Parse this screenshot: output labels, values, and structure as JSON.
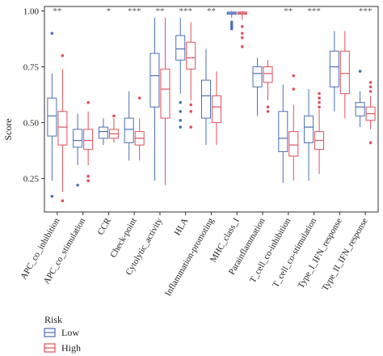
{
  "chart_data": {
    "type": "box",
    "ylabel": "Score",
    "xlabel": "",
    "ylim": [
      0.1,
      1.02
    ],
    "yticks": [
      "0.25",
      "0.50",
      "0.75",
      "1.00"
    ],
    "categories": [
      "APC_co_inhibition",
      "APC_co_stimulation",
      "CCR",
      "Check-point",
      "Cytolytic_activity",
      "HLA",
      "Inflammation-promoting",
      "MHC_class_I",
      "Parainflammation",
      "T_cell_co-inhibition",
      "T_cell_co-stimulation",
      "Type_I_IFN_response",
      "Type_II_IFN_response"
    ],
    "significance": [
      "**",
      "",
      "*",
      "***",
      "**",
      "***",
      "**",
      "",
      "",
      "**",
      "***",
      "",
      "***"
    ],
    "legend": {
      "title": "Risk",
      "position": "bottom-left"
    },
    "series": [
      {
        "name": "Low",
        "color": "#4a6fb5",
        "boxes": [
          {
            "min": 0.24,
            "q1": 0.44,
            "median": 0.53,
            "q3": 0.61,
            "max": 0.72,
            "outliers": [
              0.9,
              0.17
            ]
          },
          {
            "min": 0.31,
            "q1": 0.39,
            "median": 0.42,
            "q3": 0.47,
            "max": 0.54,
            "outliers": [
              0.22
            ]
          },
          {
            "min": 0.4,
            "q1": 0.43,
            "median": 0.46,
            "q3": 0.48,
            "max": 0.52,
            "outliers": []
          },
          {
            "min": 0.33,
            "q1": 0.41,
            "median": 0.47,
            "q3": 0.52,
            "max": 0.64,
            "outliers": []
          },
          {
            "min": 0.24,
            "q1": 0.57,
            "median": 0.71,
            "q3": 0.81,
            "max": 0.97,
            "outliers": []
          },
          {
            "min": 0.63,
            "q1": 0.78,
            "median": 0.83,
            "q3": 0.89,
            "max": 0.97,
            "outliers": [
              0.59,
              0.55,
              0.51,
              0.48
            ]
          },
          {
            "min": 0.4,
            "q1": 0.52,
            "median": 0.62,
            "q3": 0.69,
            "max": 0.83,
            "outliers": []
          },
          {
            "min": 0.97,
            "q1": 0.985,
            "median": 0.99,
            "q3": 0.995,
            "max": 1.0,
            "outliers": [
              0.95,
              0.94,
              0.93,
              0.92
            ]
          },
          {
            "min": 0.53,
            "q1": 0.66,
            "median": 0.72,
            "q3": 0.75,
            "max": 0.79,
            "outliers": []
          },
          {
            "min": 0.23,
            "q1": 0.37,
            "median": 0.43,
            "q3": 0.55,
            "max": 0.67,
            "outliers": []
          },
          {
            "min": 0.24,
            "q1": 0.41,
            "median": 0.48,
            "q3": 0.53,
            "max": 0.65,
            "outliers": []
          },
          {
            "min": 0.55,
            "q1": 0.66,
            "median": 0.75,
            "q3": 0.82,
            "max": 0.91,
            "outliers": []
          },
          {
            "min": 0.48,
            "q1": 0.53,
            "median": 0.57,
            "q3": 0.59,
            "max": 0.64,
            "outliers": [
              0.73
            ]
          }
        ]
      },
      {
        "name": "High",
        "color": "#e0505a",
        "boxes": [
          {
            "min": 0.19,
            "q1": 0.4,
            "median": 0.48,
            "q3": 0.55,
            "max": 0.74,
            "outliers": [
              0.8,
              0.15
            ]
          },
          {
            "min": 0.31,
            "q1": 0.38,
            "median": 0.42,
            "q3": 0.47,
            "max": 0.55,
            "outliers": [
              0.59,
              0.26,
              0.24
            ]
          },
          {
            "min": 0.41,
            "q1": 0.43,
            "median": 0.45,
            "q3": 0.47,
            "max": 0.52,
            "outliers": [
              0.53
            ]
          },
          {
            "min": 0.33,
            "q1": 0.4,
            "median": 0.43,
            "q3": 0.46,
            "max": 0.52,
            "outliers": [
              0.61
            ]
          },
          {
            "min": 0.22,
            "q1": 0.52,
            "median": 0.65,
            "q3": 0.74,
            "max": 0.97,
            "outliers": []
          },
          {
            "min": 0.6,
            "q1": 0.74,
            "median": 0.79,
            "q3": 0.86,
            "max": 0.95,
            "outliers": [
              0.58,
              0.55,
              0.48
            ]
          },
          {
            "min": 0.4,
            "q1": 0.5,
            "median": 0.57,
            "q3": 0.62,
            "max": 0.73,
            "outliers": []
          },
          {
            "min": 0.96,
            "q1": 0.985,
            "median": 0.99,
            "q3": 0.995,
            "max": 1.0,
            "outliers": [
              0.93,
              0.9,
              0.88,
              0.84
            ]
          },
          {
            "min": 0.6,
            "q1": 0.68,
            "median": 0.72,
            "q3": 0.75,
            "max": 0.78,
            "outliers": [
              0.57,
              0.55
            ]
          },
          {
            "min": 0.24,
            "q1": 0.35,
            "median": 0.4,
            "q3": 0.46,
            "max": 0.58,
            "outliers": [
              0.71,
              0.65
            ]
          },
          {
            "min": 0.27,
            "q1": 0.38,
            "median": 0.42,
            "q3": 0.46,
            "max": 0.56,
            "outliers": [
              0.63,
              0.61,
              0.59,
              0.57
            ]
          },
          {
            "min": 0.52,
            "q1": 0.63,
            "median": 0.72,
            "q3": 0.82,
            "max": 0.91,
            "outliers": []
          },
          {
            "min": 0.47,
            "q1": 0.51,
            "median": 0.54,
            "q3": 0.57,
            "max": 0.62,
            "outliers": [
              0.68,
              0.66,
              0.64,
              0.41
            ]
          }
        ]
      }
    ]
  }
}
